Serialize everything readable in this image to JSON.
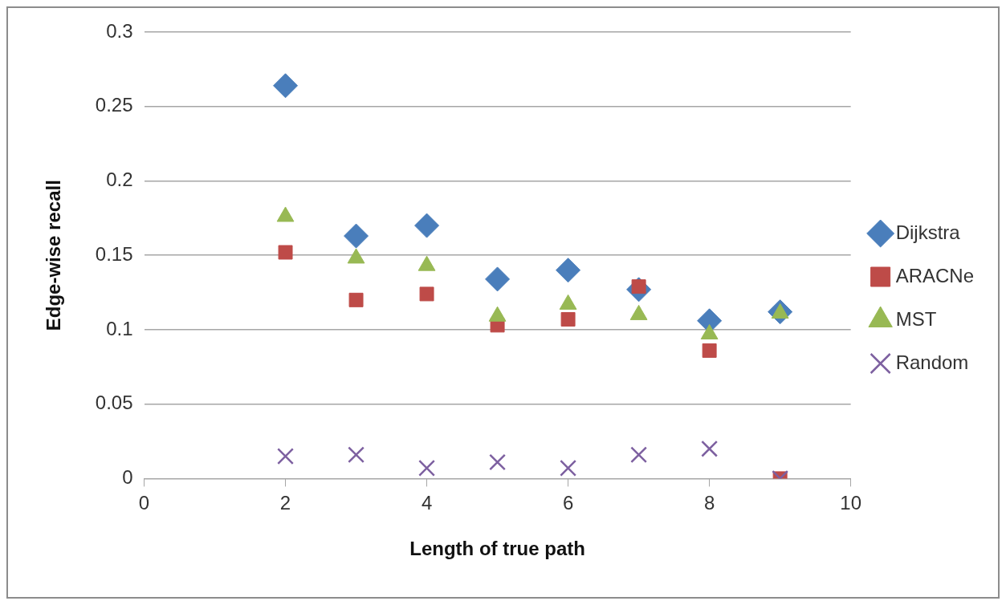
{
  "chart_data": {
    "type": "scatter",
    "xlabel": "Length of true path",
    "ylabel": "Edge-wise recall",
    "x": [
      2,
      3,
      4,
      5,
      6,
      7,
      8,
      9
    ],
    "series": [
      {
        "name": "Dijkstra",
        "color": "#4a7ebb",
        "marker": "diamond",
        "values": [
          0.264,
          0.163,
          0.17,
          0.134,
          0.14,
          0.127,
          0.106,
          0.112
        ]
      },
      {
        "name": "ARACNe",
        "color": "#be4b48",
        "marker": "square",
        "values": [
          0.152,
          0.12,
          0.124,
          0.103,
          0.107,
          0.129,
          0.086,
          0
        ]
      },
      {
        "name": "MST",
        "color": "#98b954",
        "marker": "triangle",
        "values": [
          0.176,
          0.148,
          0.143,
          0.109,
          0.117,
          0.11,
          0.097,
          0.111
        ]
      },
      {
        "name": "Random",
        "color": "#7d60a0",
        "marker": "cross",
        "values": [
          0.015,
          0.016,
          0.007,
          0.011,
          0.007,
          0.016,
          0.02,
          0
        ]
      }
    ],
    "xlim": [
      0,
      10
    ],
    "xticks": [
      0,
      2,
      4,
      6,
      8,
      10
    ],
    "ylim": [
      0,
      0.3
    ],
    "yticks": [
      0,
      0.05,
      0.1,
      0.15,
      0.2,
      0.25,
      0.3
    ],
    "grid": "y",
    "legend": "right"
  }
}
